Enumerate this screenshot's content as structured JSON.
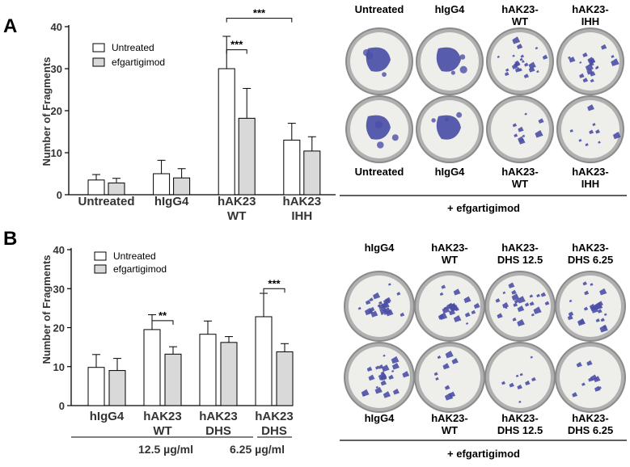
{
  "panel_labels": [
    "A",
    "B"
  ],
  "chart_data": [
    {
      "type": "bar",
      "ylabel": "Number of Fragments",
      "ylim": [
        0,
        40
      ],
      "yticks": [
        "0",
        "10",
        "20",
        "30",
        "40"
      ],
      "legend": [
        "Untreated",
        "efgartigimod"
      ],
      "legend_placement": "top-left",
      "grid": false,
      "categories": [
        [
          "Untreated"
        ],
        [
          "hIgG4"
        ],
        [
          "hAK23",
          "WT"
        ],
        [
          "hAK23",
          "IHH"
        ]
      ],
      "series": [
        {
          "name": "Untreated",
          "color": "#ffffff",
          "values": [
            3.5,
            5.0,
            30.0,
            13.0
          ],
          "errors": [
            1.3,
            3.2,
            7.7,
            4.0
          ]
        },
        {
          "name": "efgartigimod",
          "color": "#d9d9d9",
          "values": [
            2.8,
            4.0,
            18.2,
            10.4
          ],
          "errors": [
            1.1,
            2.2,
            7.1,
            3.4
          ]
        }
      ],
      "significance": [
        {
          "label": "***",
          "from_category": 2,
          "from_series": 0,
          "to_category": 2,
          "to_series": 1,
          "y": 34.5
        },
        {
          "label": "***",
          "from_category": 2,
          "from_series": 0,
          "to_category": 3,
          "to_series": 0,
          "y": 42.0
        }
      ]
    },
    {
      "type": "bar",
      "ylabel": "Number of Fragments",
      "ylim": [
        0,
        40
      ],
      "yticks": [
        "0",
        "10",
        "20",
        "30",
        "40"
      ],
      "legend": [
        "Untreated",
        "efgartigimod"
      ],
      "legend_placement": "top-left",
      "grid": false,
      "categories": [
        [
          "hIgG4"
        ],
        [
          "hAK23",
          "WT"
        ],
        [
          "hAK23",
          "DHS"
        ],
        [
          "hAK23",
          "DHS"
        ]
      ],
      "series": [
        {
          "name": "Untreated",
          "color": "#ffffff",
          "values": [
            9.8,
            19.5,
            18.3,
            22.8
          ],
          "errors": [
            3.3,
            3.8,
            3.4,
            6.0
          ]
        },
        {
          "name": "efgartigimod",
          "color": "#d9d9d9",
          "values": [
            9.0,
            13.2,
            16.2,
            13.8
          ],
          "errors": [
            3.1,
            1.9,
            1.5,
            2.1
          ]
        }
      ],
      "significance": [
        {
          "label": "**",
          "from_category": 1,
          "from_series": 0,
          "to_category": 1,
          "to_series": 1,
          "y": 21.8
        },
        {
          "label": "***",
          "from_category": 3,
          "from_series": 0,
          "to_category": 3,
          "to_series": 1,
          "y": 30.0
        }
      ],
      "group_labels": [
        {
          "label": "12.5 µg/ml",
          "categories": [
            0,
            1,
            2
          ]
        },
        {
          "label": "6.25 µg/ml",
          "categories": [
            3
          ]
        }
      ]
    }
  ],
  "photos": {
    "panel_a": {
      "top_labels": [
        [
          "Untreated"
        ],
        [
          "hIgG4"
        ],
        [
          "hAK23-",
          "WT"
        ],
        [
          "hAK23-",
          "IHH"
        ]
      ],
      "bottom_labels": [
        [
          "Untreated"
        ],
        [
          "hIgG4"
        ],
        [
          "hAK23-",
          "WT"
        ],
        [
          "hAK23-",
          "IHH"
        ]
      ],
      "caption": "+ efgartigimod"
    },
    "panel_b": {
      "top_labels": [
        [
          "hIgG4"
        ],
        [
          "hAK23-",
          "WT"
        ],
        [
          "hAK23-",
          "DHS 12.5"
        ],
        [
          "hAK23-",
          "DHS 6.25"
        ]
      ],
      "bottom_labels": [
        [
          "hIgG4"
        ],
        [
          "hAK23-",
          "WT"
        ],
        [
          "hAK23-",
          "DHS 12.5"
        ],
        [
          "hAK23-",
          "DHS 6.25"
        ]
      ],
      "caption": "+ efgartigimod"
    },
    "well_color": "#eeeeea",
    "rim_color": "#b0b0b0",
    "stain_color": "#4b4fa6"
  }
}
